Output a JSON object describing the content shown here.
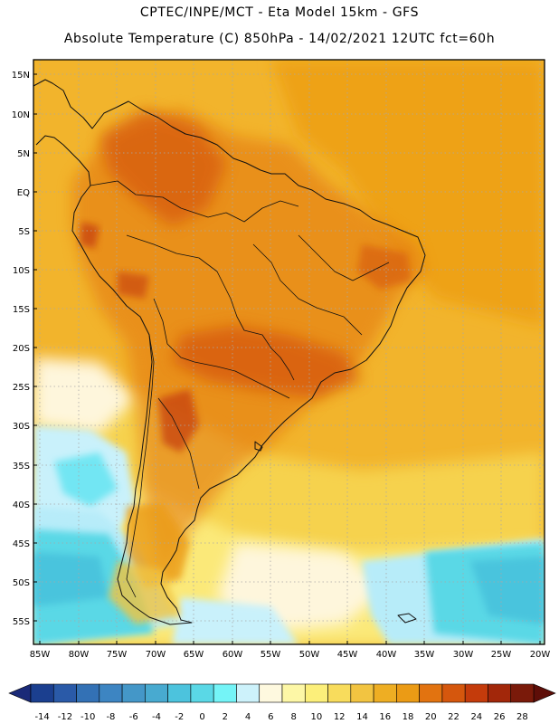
{
  "header": {
    "line1": "CPTEC/INPE/MCT -  Eta Model 15km - GFS",
    "line2": "Absolute Temperature (C) 850hPa - 14/02/2021 12UTC fct=60h"
  },
  "map": {
    "lat_labels": [
      "15N",
      "10N",
      "5N",
      "EQ",
      "5S",
      "10S",
      "15S",
      "20S",
      "25S",
      "30S",
      "35S",
      "40S",
      "45S",
      "50S",
      "55S"
    ],
    "lon_labels": [
      "85W",
      "80W",
      "75W",
      "70W",
      "65W",
      "60W",
      "55W",
      "50W",
      "45W",
      "40W",
      "35W",
      "30W",
      "25W",
      "20W"
    ]
  },
  "colorbar": {
    "labels": [
      "-14",
      "-12",
      "-10",
      "-8",
      "-6",
      "-4",
      "-2",
      "0",
      "2",
      "4",
      "6",
      "8",
      "10",
      "12",
      "14",
      "16",
      "18",
      "20",
      "22",
      "24",
      "26",
      "28"
    ],
    "colors": [
      "#1b3f8f",
      "#2a5aa8",
      "#3371b5",
      "#3d85c2",
      "#4497c8",
      "#48aad0",
      "#4cc3dd",
      "#5ad8e6",
      "#74f4f7",
      "#cdf2fb",
      "#fef9df",
      "#fdf7a6",
      "#fcef7a",
      "#f8dc5c",
      "#f2c441",
      "#eeae23",
      "#eb9b15",
      "#e27310",
      "#d5570d",
      "#c43b0b",
      "#a2270a",
      "#7a1a0a"
    ],
    "extend_low_color": "#1a2a78",
    "extend_high_color": "#5e0e08"
  },
  "icons": {
    "map": "map-icon"
  }
}
